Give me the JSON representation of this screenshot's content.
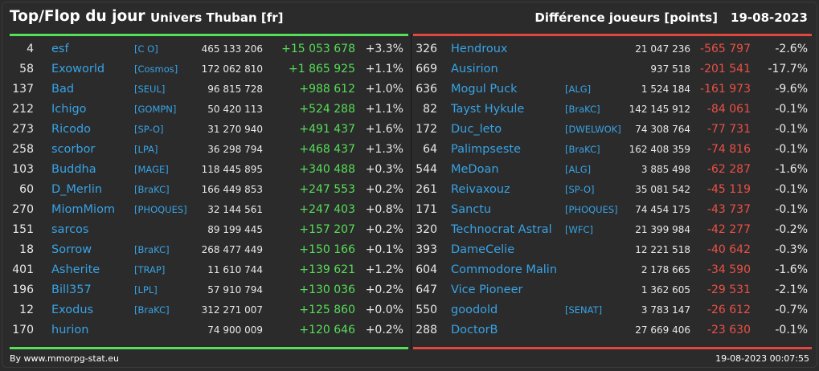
{
  "header": {
    "title": "Top/Flop du jour",
    "universe": "Univers Thuban [fr]",
    "metric": "Différence joueurs [points]",
    "date": "19-08-2023"
  },
  "colors": {
    "background": "#2b2b2b",
    "name_blue": "#37a3e6",
    "gain_green": "#58dd58",
    "loss_red": "#ea5045",
    "bar_green": "#55e05a",
    "bar_red": "#e0483e"
  },
  "top": [
    {
      "rank": "4",
      "name": "esf",
      "alliance": "[C O]",
      "points": "465 133 206",
      "diff": "+15 053 678",
      "pct": "+3.3%"
    },
    {
      "rank": "58",
      "name": "Exoworld",
      "alliance": "[Cosmos]",
      "points": "172 062 810",
      "diff": "+1 865 925",
      "pct": "+1.1%"
    },
    {
      "rank": "137",
      "name": "Bad",
      "alliance": "[SEUL]",
      "points": "96 815 728",
      "diff": "+988 612",
      "pct": "+1.0%"
    },
    {
      "rank": "212",
      "name": "Ichigo",
      "alliance": "[GOMPN]",
      "points": "50 420 113",
      "diff": "+524 288",
      "pct": "+1.1%"
    },
    {
      "rank": "273",
      "name": "Ricodo",
      "alliance": "[SP-O]",
      "points": "31 270 940",
      "diff": "+491 437",
      "pct": "+1.6%"
    },
    {
      "rank": "258",
      "name": "scorbor",
      "alliance": "[LPA]",
      "points": "36 298 794",
      "diff": "+468 437",
      "pct": "+1.3%"
    },
    {
      "rank": "103",
      "name": "Buddha",
      "alliance": "[MAGE]",
      "points": "118 445 895",
      "diff": "+340 488",
      "pct": "+0.3%"
    },
    {
      "rank": "60",
      "name": "D_Merlin",
      "alliance": "[BraKC]",
      "points": "166 449 853",
      "diff": "+247 553",
      "pct": "+0.2%"
    },
    {
      "rank": "270",
      "name": "MiomMiom",
      "alliance": "[PHOQUES]",
      "points": "32 144 561",
      "diff": "+247 403",
      "pct": "+0.8%"
    },
    {
      "rank": "151",
      "name": "sarcos",
      "alliance": "",
      "points": "89 199 445",
      "diff": "+157 207",
      "pct": "+0.2%"
    },
    {
      "rank": "18",
      "name": "Sorrow",
      "alliance": "[BraKC]",
      "points": "268 477 449",
      "diff": "+150 166",
      "pct": "+0.1%"
    },
    {
      "rank": "401",
      "name": "Asherite",
      "alliance": "[TRAP]",
      "points": "11 610 744",
      "diff": "+139 621",
      "pct": "+1.2%"
    },
    {
      "rank": "196",
      "name": "Bill357",
      "alliance": "[LPL]",
      "points": "57 910 794",
      "diff": "+130 036",
      "pct": "+0.2%"
    },
    {
      "rank": "12",
      "name": "Exodus",
      "alliance": "[BraKC]",
      "points": "312 271 007",
      "diff": "+125 860",
      "pct": "+0.0%"
    },
    {
      "rank": "170",
      "name": "hurion",
      "alliance": "",
      "points": "74 900 009",
      "diff": "+120 646",
      "pct": "+0.2%"
    }
  ],
  "flop": [
    {
      "rank": "326",
      "name": "Hendroux",
      "alliance": "",
      "points": "21 047 236",
      "diff": "-565 797",
      "pct": "-2.6%"
    },
    {
      "rank": "669",
      "name": "Ausirion",
      "alliance": "",
      "points": "937 518",
      "diff": "-201 541",
      "pct": "-17.7%"
    },
    {
      "rank": "636",
      "name": "Mogul Puck",
      "alliance": "[ALG]",
      "points": "1 524 184",
      "diff": "-161 973",
      "pct": "-9.6%"
    },
    {
      "rank": "82",
      "name": "Tayst Hykule",
      "alliance": "[BraKC]",
      "points": "142 145 912",
      "diff": "-84 061",
      "pct": "-0.1%"
    },
    {
      "rank": "172",
      "name": "Duc_leto",
      "alliance": "[DWELWOK]",
      "points": "74 308 764",
      "diff": "-77 731",
      "pct": "-0.1%"
    },
    {
      "rank": "64",
      "name": "Palimpseste",
      "alliance": "[BraKC]",
      "points": "162 408 359",
      "diff": "-74 816",
      "pct": "-0.1%"
    },
    {
      "rank": "544",
      "name": "MeDoan",
      "alliance": "[ALG]",
      "points": "3 885 498",
      "diff": "-62 287",
      "pct": "-1.6%"
    },
    {
      "rank": "261",
      "name": "Reivaxouz",
      "alliance": "[SP-O]",
      "points": "35 081 542",
      "diff": "-45 119",
      "pct": "-0.1%"
    },
    {
      "rank": "171",
      "name": "Sanctu",
      "alliance": "[PHOQUES]",
      "points": "74 454 175",
      "diff": "-43 737",
      "pct": "-0.1%"
    },
    {
      "rank": "320",
      "name": "Technocrat Astral",
      "alliance": "[WFC]",
      "points": "21 399 984",
      "diff": "-42 277",
      "pct": "-0.2%"
    },
    {
      "rank": "393",
      "name": "DameCelie",
      "alliance": "",
      "points": "12 221 518",
      "diff": "-40 642",
      "pct": "-0.3%"
    },
    {
      "rank": "604",
      "name": "Commodore Malin",
      "alliance": "",
      "points": "2 178 665",
      "diff": "-34 590",
      "pct": "-1.6%"
    },
    {
      "rank": "647",
      "name": "Vice Pioneer",
      "alliance": "",
      "points": "1 362 605",
      "diff": "-29 531",
      "pct": "-2.1%"
    },
    {
      "rank": "550",
      "name": "goodold",
      "alliance": "[SENAT]",
      "points": "3 783 147",
      "diff": "-26 612",
      "pct": "-0.7%"
    },
    {
      "rank": "288",
      "name": "DoctorB",
      "alliance": "",
      "points": "27 669 406",
      "diff": "-23 630",
      "pct": "-0.1%"
    }
  ],
  "footer": {
    "credit": "By www.mmorpg-stat.eu",
    "timestamp": "19-08-2023 00:07:55"
  }
}
